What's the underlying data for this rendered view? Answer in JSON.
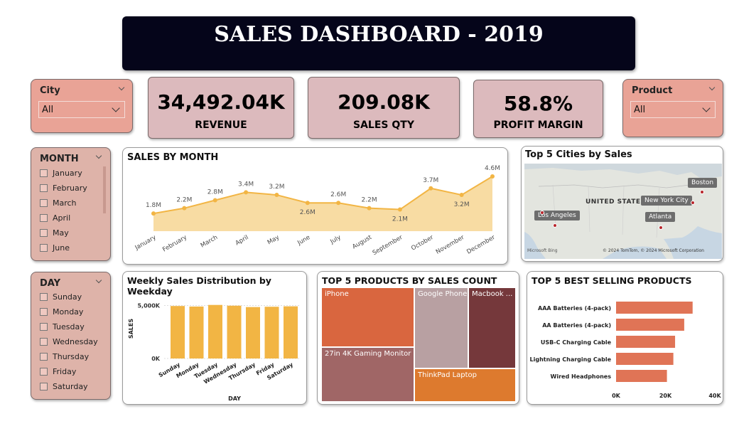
{
  "header": {
    "title": "SALES DASHBOARD - 2019"
  },
  "filters": {
    "city": {
      "label": "City",
      "value": "All"
    },
    "product": {
      "label": "Product",
      "value": "All"
    }
  },
  "kpis": {
    "revenue": {
      "value": "34,492.04K",
      "label": "REVENUE"
    },
    "sales_qty": {
      "value": "209.08K",
      "label": "SALES QTY"
    },
    "profit_margin": {
      "value": "58.8%",
      "label": "PROFIT MARGIN"
    }
  },
  "month_slicer": {
    "label": "MONTH",
    "items": [
      "January",
      "February",
      "March",
      "April",
      "May",
      "June"
    ]
  },
  "day_slicer": {
    "label": "DAY",
    "items": [
      "Sunday",
      "Monday",
      "Tuesday",
      "Wednesday",
      "Thursday",
      "Friday",
      "Saturday"
    ]
  },
  "sales_by_month": {
    "title": "SALES BY MONTH",
    "chart_data": {
      "type": "area",
      "categories": [
        "January",
        "February",
        "March",
        "April",
        "May",
        "June",
        "July",
        "August",
        "September",
        "October",
        "November",
        "December"
      ],
      "values": [
        1.8,
        2.2,
        2.8,
        3.4,
        3.2,
        2.6,
        2.6,
        2.2,
        2.1,
        3.7,
        3.2,
        4.6
      ],
      "data_labels": [
        "1.8M",
        "2.2M",
        "2.8M",
        "3.4M",
        "3.2M",
        "2.6M",
        "2.6M",
        "2.2M",
        "2.1M",
        "3.7M",
        "3.2M",
        "4.6M"
      ],
      "color": "#f2b544"
    }
  },
  "top_cities": {
    "title": "Top 5 Cities by Sales",
    "country_label": "UNITED STATES",
    "cities": [
      "Boston",
      "New York City",
      "Los Angeles",
      "Atlanta"
    ],
    "attribution_left": "Microsoft Bing",
    "attribution_right": "© 2024 TomTom, © 2024 Microsoft Corporation"
  },
  "weekday_sales": {
    "title": "Weekly Sales Distribution by Weekday",
    "chart_data": {
      "type": "bar",
      "categories": [
        "Sunday",
        "Monday",
        "Tuesday",
        "Wednesday",
        "Thursday",
        "Friday",
        "Saturday"
      ],
      "values": [
        4950,
        4900,
        5050,
        4980,
        4850,
        4880,
        4920
      ],
      "ylim": [
        0,
        5500
      ],
      "ticks": [
        "5,000K",
        "0K"
      ],
      "xlabel": "DAY",
      "ylabel": "SALES",
      "color": "#f2b544"
    }
  },
  "top_products_count": {
    "title": "TOP 5 PRODUCTS BY SALES COUNT",
    "chart_data": {
      "type": "treemap",
      "items": [
        {
          "name": "iPhone",
          "color": "#d9663f"
        },
        {
          "name": "27in 4K Gaming Monitor",
          "color": "#a06666"
        },
        {
          "name": "Google Phone",
          "color": "#b8a0a2"
        },
        {
          "name": "Macbook ...",
          "color": "#75383b"
        },
        {
          "name": "ThinkPad Laptop",
          "color": "#dd7a2e"
        }
      ]
    }
  },
  "best_selling": {
    "title": "TOP 5 BEST SELLING PRODUCTS",
    "chart_data": {
      "type": "bar",
      "orientation": "horizontal",
      "categories": [
        "AAA Batteries (4-pack)",
        "AA Batteries (4-pack)",
        "USB-C Charging Cable",
        "Lightning Charging Cable",
        "Wired Headphones"
      ],
      "values": [
        31000,
        27600,
        23900,
        23200,
        20600
      ],
      "xlim": [
        0,
        40000
      ],
      "ticks": [
        "0K",
        "20K",
        "40K"
      ],
      "color": "#e07456"
    }
  }
}
